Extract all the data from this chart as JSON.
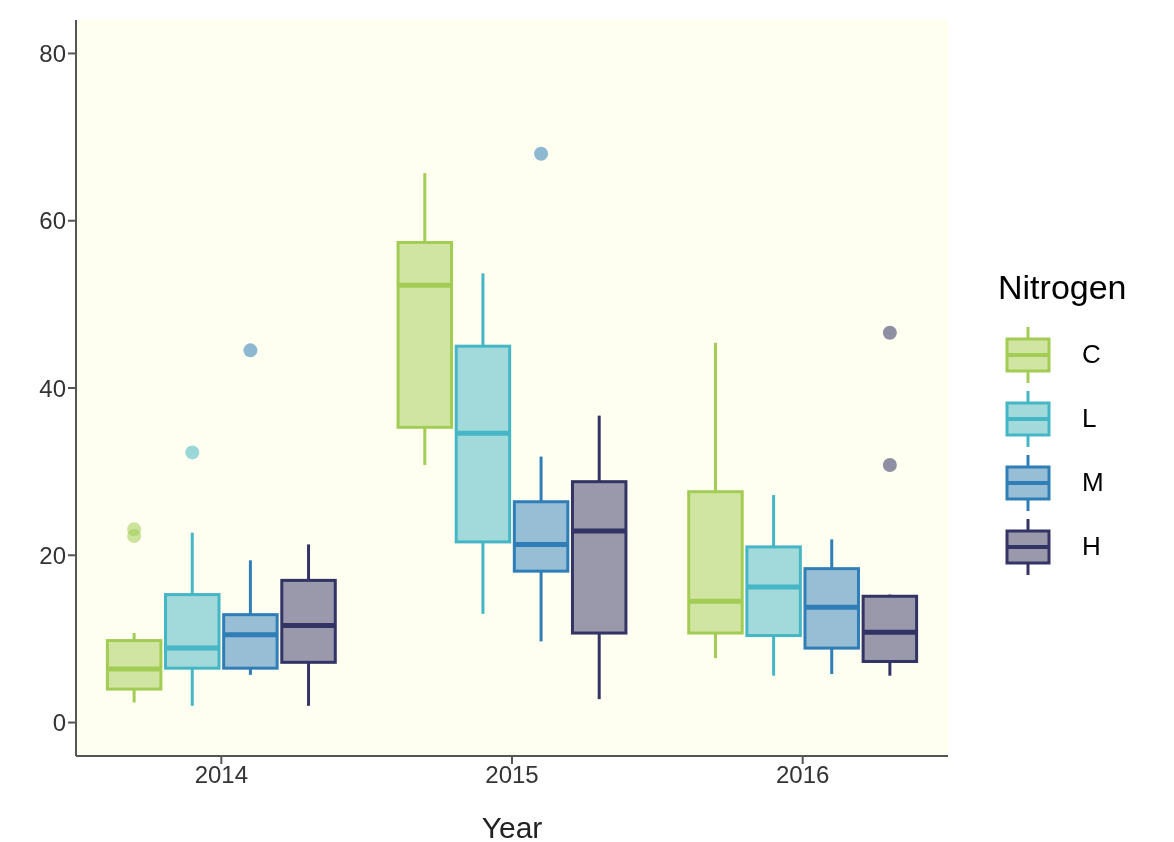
{
  "chart_data": {
    "type": "box",
    "xlabel": "Year",
    "legend_title": "Nitrogen",
    "categories": [
      "2014",
      "2015",
      "2016"
    ],
    "ylim": [
      -4,
      84
    ],
    "yticks": [
      0,
      20,
      40,
      60,
      80
    ],
    "legend": "right",
    "series": [
      {
        "name": "C",
        "color": "#a3cc55",
        "boxes": [
          {
            "low": 2.4,
            "q1": 4.0,
            "median": 6.4,
            "q3": 9.8,
            "high": 10.7,
            "outliers": [
              23.1,
              22.3
            ]
          },
          {
            "low": 30.8,
            "q1": 35.3,
            "median": 52.3,
            "q3": 57.4,
            "high": 65.7
          },
          {
            "low": 7.7,
            "q1": 10.7,
            "median": 14.5,
            "q3": 27.6,
            "high": 45.4
          }
        ]
      },
      {
        "name": "L",
        "color": "#45b6c6",
        "boxes": [
          {
            "low": 2.0,
            "q1": 6.5,
            "median": 8.9,
            "q3": 15.3,
            "high": 22.7,
            "outliers": [
              32.3
            ]
          },
          {
            "low": 13.0,
            "q1": 21.6,
            "median": 34.6,
            "q3": 45.0,
            "high": 53.7
          },
          {
            "low": 5.6,
            "q1": 10.4,
            "median": 16.2,
            "q3": 21.0,
            "high": 27.2
          }
        ]
      },
      {
        "name": "M",
        "color": "#2f7eb8",
        "boxes": [
          {
            "low": 5.7,
            "q1": 6.5,
            "median": 10.5,
            "q3": 12.9,
            "high": 19.4,
            "outliers": [
              44.5
            ]
          },
          {
            "low": 9.7,
            "q1": 18.1,
            "median": 21.3,
            "q3": 26.4,
            "high": 31.8,
            "outliers": [
              68.0
            ]
          },
          {
            "low": 5.8,
            "q1": 8.9,
            "median": 13.8,
            "q3": 18.4,
            "high": 21.9
          }
        ]
      },
      {
        "name": "H",
        "color": "#333366",
        "boxes": [
          {
            "low": 2.0,
            "q1": 7.2,
            "median": 11.6,
            "q3": 17.0,
            "high": 21.3
          },
          {
            "low": 2.8,
            "q1": 10.7,
            "median": 22.9,
            "q3": 28.8,
            "high": 36.7
          },
          {
            "low": 5.6,
            "q1": 7.3,
            "median": 10.8,
            "q3": 15.1,
            "high": 15.3,
            "outliers": [
              46.6,
              30.8
            ]
          }
        ]
      }
    ]
  }
}
